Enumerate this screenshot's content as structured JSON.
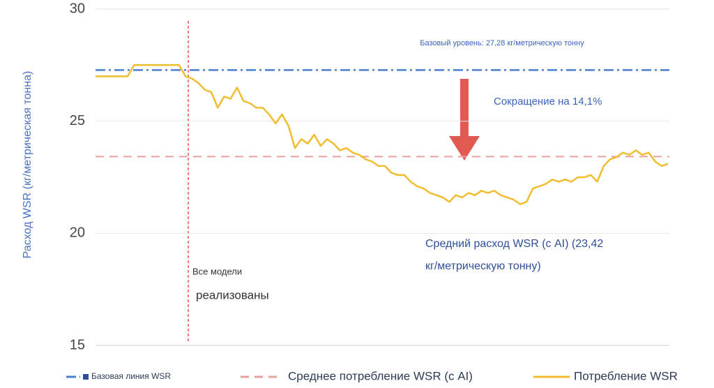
{
  "chart_data": {
    "type": "line",
    "y_label": "Расход WSR (кг/метрическая тонна)",
    "ylim": [
      15,
      30
    ],
    "yticks": [
      15,
      20,
      25,
      30
    ],
    "grid": true,
    "series": [
      {
        "name": "Базовая линия WSR",
        "color": "#4a7fd0",
        "style": "dashdot",
        "values": [
          27.28
        ]
      },
      {
        "name": "Среднее потребление WSR (с AI)",
        "color": "#e8a09c",
        "style": "dashed",
        "values": [
          23.42
        ]
      },
      {
        "name": "Потребление WSR",
        "color": "#f2bc2f",
        "style": "solid",
        "values": [
          27.0,
          27.0,
          27.0,
          27.0,
          27.0,
          27.0,
          27.5,
          27.5,
          27.5,
          27.5,
          27.5,
          27.5,
          27.5,
          27.5,
          27.0,
          26.9,
          26.7,
          26.4,
          26.3,
          25.6,
          26.1,
          26.0,
          26.5,
          25.9,
          25.8,
          25.6,
          25.6,
          25.3,
          24.9,
          25.3,
          24.8,
          23.8,
          24.2,
          24.0,
          24.4,
          23.9,
          24.2,
          24.0,
          23.7,
          23.8,
          23.6,
          23.5,
          23.3,
          23.2,
          23.0,
          23.0,
          22.7,
          22.6,
          22.6,
          22.3,
          22.1,
          22.0,
          21.8,
          21.7,
          21.6,
          21.4,
          21.7,
          21.6,
          21.8,
          21.7,
          21.9,
          21.8,
          21.9,
          21.7,
          21.6,
          21.5,
          21.3,
          21.4,
          22.0,
          22.1,
          22.2,
          22.4,
          22.3,
          22.4,
          22.3,
          22.5,
          22.5,
          22.6,
          22.3,
          23.0,
          23.3,
          23.4,
          23.6,
          23.5,
          23.7,
          23.5,
          23.6,
          23.2,
          23.0,
          23.1
        ]
      }
    ],
    "annotations": [
      "Базовый уровень: 27,28 кг/метрическую тонну",
      "Сокращение на 14,1%",
      "Средний расход WSR (с AI) (23,42",
      "кг/метрическую тонну)",
      "Все модели",
      "реализованы"
    ]
  }
}
